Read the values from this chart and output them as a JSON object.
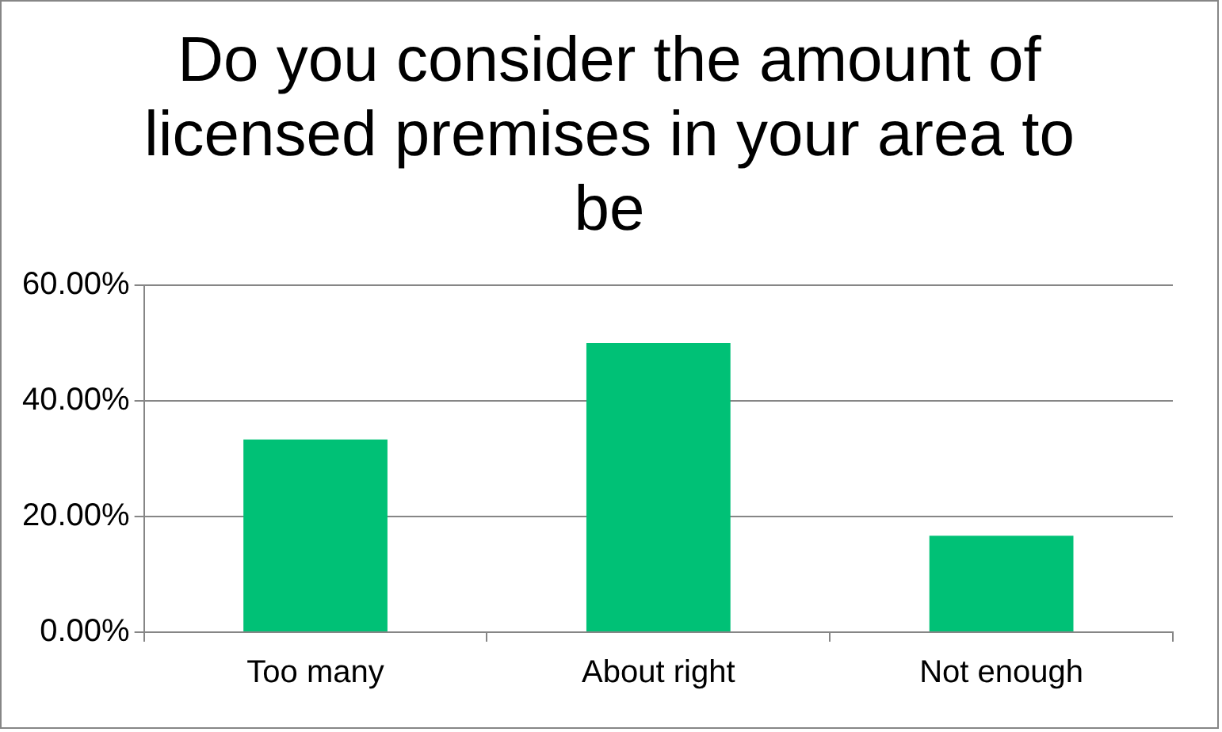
{
  "chart_data": {
    "type": "bar",
    "title": "Do you consider the amount of licensed premises in your area to be",
    "categories": [
      "Too many",
      "About right",
      "Not enough"
    ],
    "values": [
      33.33,
      50,
      16.67
    ],
    "color": "#00c176",
    "ylim": [
      0,
      60
    ],
    "yticks": [
      {
        "value": 0,
        "label": "0.00%"
      },
      {
        "value": 20,
        "label": "20.00%"
      },
      {
        "value": 40,
        "label": "40.00%"
      },
      {
        "value": 60,
        "label": "60.00%"
      }
    ],
    "grid": "y",
    "legend": false
  }
}
